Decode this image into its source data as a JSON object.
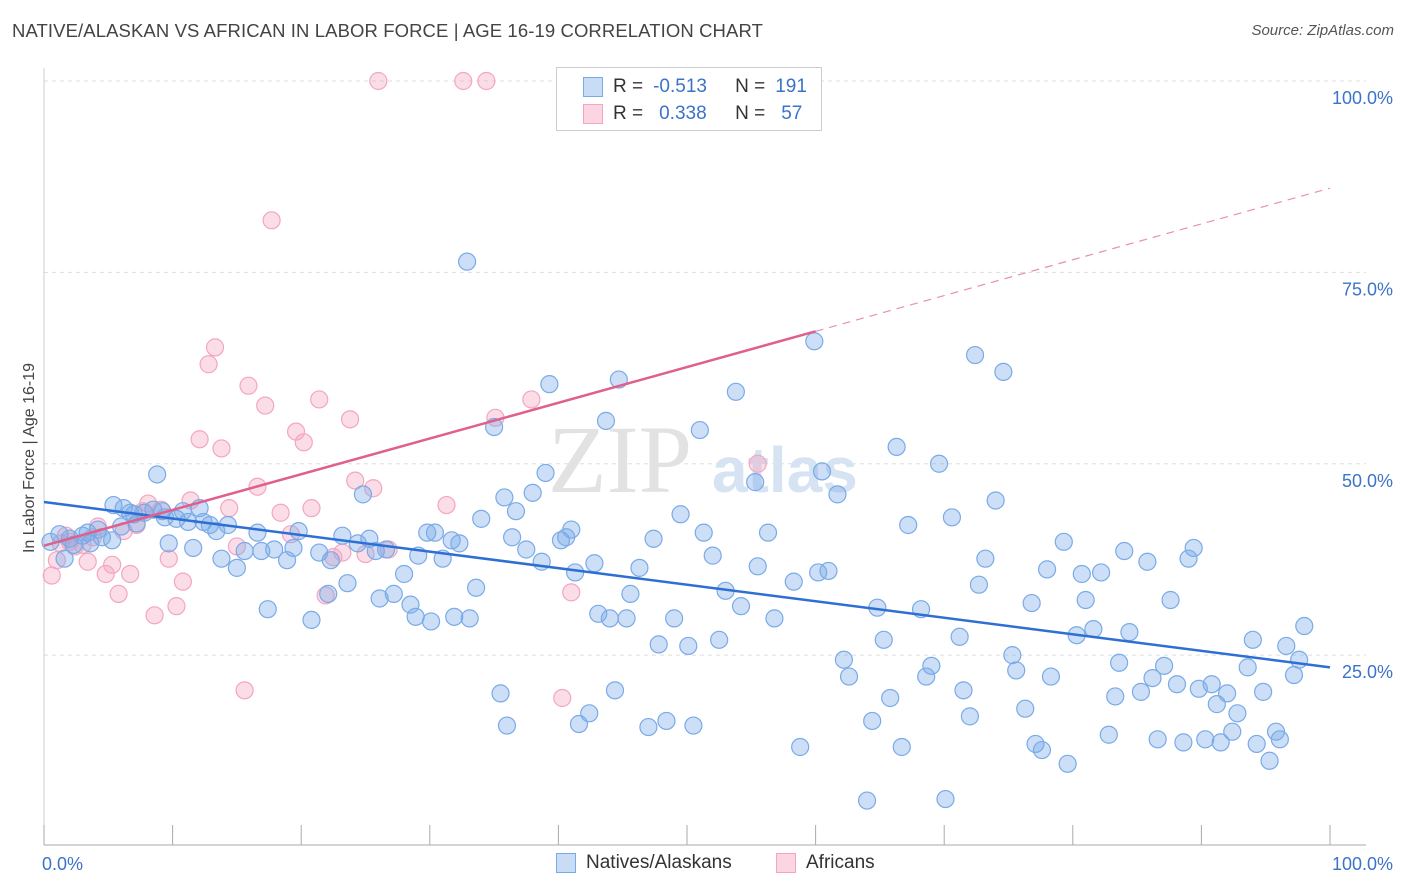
{
  "title": "NATIVE/ALASKAN VS AFRICAN IN LABOR FORCE | AGE 16-19 CORRELATION CHART",
  "source": "Source: ZipAtlas.com",
  "watermark": {
    "zip": "ZIP",
    "atlas": "atlas"
  },
  "legend": {
    "rows": [
      {
        "r_label": "R =",
        "r_value": "-0.513",
        "n_label": "N =",
        "n_value": "191"
      },
      {
        "r_label": "R =",
        "r_value": "0.338",
        "n_label": "N =",
        "n_value": "57"
      }
    ]
  },
  "chart_data": {
    "type": "scatter",
    "title": "NATIVE/ALASKAN VS AFRICAN IN LABOR FORCE | AGE 16-19 CORRELATION CHART",
    "ylabel": "In Labor Force | Age 16-19",
    "xlabel": "",
    "xlim": [
      0,
      100
    ],
    "ylim": [
      0,
      100
    ],
    "x_tick_labels": [
      "0.0%",
      "100.0%"
    ],
    "y_tick_labels": [
      "25.0%",
      "50.0%",
      "75.0%",
      "100.0%"
    ],
    "y_ticks": [
      25,
      50,
      75,
      100
    ],
    "grid": true,
    "legend_position": "top-center",
    "series": [
      {
        "name": "Natives/Alaskans",
        "color": "#7aaae8",
        "line_color": "#2e6fd3",
        "r": -0.513,
        "n": 191,
        "trend": {
          "x": [
            0,
            100
          ],
          "y": [
            45.0,
            23.4
          ]
        },
        "points": [
          [
            0.5,
            39.8
          ],
          [
            1.2,
            40.8
          ],
          [
            1.6,
            37.6
          ],
          [
            2.0,
            40.2
          ],
          [
            2.3,
            39.4
          ],
          [
            3.0,
            40.6
          ],
          [
            3.4,
            41.0
          ],
          [
            3.6,
            39.6
          ],
          [
            4.2,
            41.4
          ],
          [
            4.5,
            40.4
          ],
          [
            5.3,
            40.0
          ],
          [
            5.4,
            44.6
          ],
          [
            6.0,
            41.8
          ],
          [
            6.2,
            44.2
          ],
          [
            6.7,
            43.6
          ],
          [
            7.0,
            43.4
          ],
          [
            7.2,
            42.2
          ],
          [
            7.8,
            43.6
          ],
          [
            8.5,
            44.0
          ],
          [
            8.8,
            48.6
          ],
          [
            9.2,
            43.8
          ],
          [
            9.4,
            43.0
          ],
          [
            9.7,
            39.6
          ],
          [
            10.3,
            42.8
          ],
          [
            10.8,
            43.8
          ],
          [
            11.2,
            42.4
          ],
          [
            11.6,
            39.0
          ],
          [
            12.1,
            44.2
          ],
          [
            12.4,
            42.4
          ],
          [
            12.9,
            42.0
          ],
          [
            13.4,
            41.2
          ],
          [
            13.8,
            37.6
          ],
          [
            14.3,
            42.0
          ],
          [
            15.0,
            36.4
          ],
          [
            15.6,
            38.6
          ],
          [
            16.6,
            41.0
          ],
          [
            16.9,
            38.6
          ],
          [
            17.4,
            31.0
          ],
          [
            17.9,
            38.8
          ],
          [
            18.9,
            37.4
          ],
          [
            19.4,
            39.0
          ],
          [
            19.8,
            41.2
          ],
          [
            20.8,
            29.6
          ],
          [
            21.4,
            38.4
          ],
          [
            22.1,
            33.0
          ],
          [
            22.3,
            37.4
          ],
          [
            23.2,
            40.6
          ],
          [
            23.6,
            34.4
          ],
          [
            24.4,
            39.6
          ],
          [
            24.8,
            46.0
          ],
          [
            25.3,
            40.2
          ],
          [
            25.8,
            38.6
          ],
          [
            26.1,
            32.4
          ],
          [
            26.6,
            38.8
          ],
          [
            27.2,
            33.0
          ],
          [
            28.0,
            35.6
          ],
          [
            28.5,
            31.6
          ],
          [
            28.9,
            30.0
          ],
          [
            29.1,
            38.0
          ],
          [
            29.8,
            41.0
          ],
          [
            30.1,
            29.4
          ],
          [
            30.4,
            41.0
          ],
          [
            31.0,
            37.6
          ],
          [
            31.7,
            40.0
          ],
          [
            31.9,
            30.0
          ],
          [
            32.3,
            39.6
          ],
          [
            32.9,
            76.4
          ],
          [
            33.1,
            29.8
          ],
          [
            33.6,
            33.8
          ],
          [
            34.0,
            42.8
          ],
          [
            35.0,
            54.8
          ],
          [
            35.5,
            20.0
          ],
          [
            35.8,
            45.6
          ],
          [
            36.0,
            15.8
          ],
          [
            36.4,
            40.4
          ],
          [
            36.7,
            43.8
          ],
          [
            37.5,
            38.8
          ],
          [
            38.0,
            46.2
          ],
          [
            38.7,
            37.2
          ],
          [
            39.0,
            48.8
          ],
          [
            39.3,
            60.4
          ],
          [
            40.2,
            40.0
          ],
          [
            40.6,
            40.4
          ],
          [
            41.0,
            41.4
          ],
          [
            41.3,
            35.8
          ],
          [
            41.6,
            16.0
          ],
          [
            42.4,
            17.4
          ],
          [
            42.8,
            37.0
          ],
          [
            43.1,
            30.4
          ],
          [
            43.7,
            55.6
          ],
          [
            44.0,
            29.8
          ],
          [
            44.4,
            20.4
          ],
          [
            44.7,
            61.0
          ],
          [
            45.3,
            29.8
          ],
          [
            45.6,
            33.0
          ],
          [
            46.3,
            36.4
          ],
          [
            47.0,
            15.6
          ],
          [
            47.4,
            40.2
          ],
          [
            47.8,
            26.4
          ],
          [
            48.4,
            16.4
          ],
          [
            49.0,
            29.8
          ],
          [
            49.5,
            43.4
          ],
          [
            50.1,
            26.2
          ],
          [
            50.5,
            15.8
          ],
          [
            51.0,
            54.4
          ],
          [
            51.3,
            41.0
          ],
          [
            52.0,
            38.0
          ],
          [
            52.5,
            27.0
          ],
          [
            53.0,
            33.4
          ],
          [
            53.8,
            59.4
          ],
          [
            54.2,
            31.4
          ],
          [
            55.3,
            47.6
          ],
          [
            55.5,
            36.6
          ],
          [
            56.3,
            41.0
          ],
          [
            56.8,
            29.8
          ],
          [
            58.3,
            34.6
          ],
          [
            58.8,
            13.0
          ],
          [
            59.9,
            66.0
          ],
          [
            60.2,
            35.8
          ],
          [
            60.5,
            49.0
          ],
          [
            61.0,
            36.0
          ],
          [
            61.7,
            46.0
          ],
          [
            62.2,
            24.4
          ],
          [
            62.6,
            22.2
          ],
          [
            64.0,
            6.0
          ],
          [
            64.4,
            16.4
          ],
          [
            64.8,
            31.2
          ],
          [
            65.3,
            27.0
          ],
          [
            65.8,
            19.4
          ],
          [
            66.3,
            52.2
          ],
          [
            66.7,
            13.0
          ],
          [
            67.2,
            42.0
          ],
          [
            68.2,
            31.0
          ],
          [
            68.6,
            22.2
          ],
          [
            69.6,
            50.0
          ],
          [
            69.0,
            23.6
          ],
          [
            70.1,
            6.2
          ],
          [
            70.6,
            43.0
          ],
          [
            71.2,
            27.4
          ],
          [
            71.5,
            20.4
          ],
          [
            72.0,
            17.0
          ],
          [
            72.4,
            64.2
          ],
          [
            72.7,
            34.2
          ],
          [
            73.2,
            37.6
          ],
          [
            74.0,
            45.2
          ],
          [
            74.6,
            62.0
          ],
          [
            75.3,
            25.0
          ],
          [
            75.6,
            23.0
          ],
          [
            76.3,
            18.0
          ],
          [
            76.8,
            31.8
          ],
          [
            77.1,
            13.4
          ],
          [
            77.6,
            12.6
          ],
          [
            78.0,
            36.2
          ],
          [
            78.3,
            22.2
          ],
          [
            79.3,
            39.8
          ],
          [
            79.6,
            10.8
          ],
          [
            80.3,
            27.6
          ],
          [
            80.7,
            35.6
          ],
          [
            81.0,
            32.2
          ],
          [
            81.6,
            28.4
          ],
          [
            82.2,
            35.8
          ],
          [
            82.8,
            14.6
          ],
          [
            83.3,
            19.6
          ],
          [
            83.6,
            24.0
          ],
          [
            84.0,
            38.6
          ],
          [
            84.4,
            28.0
          ],
          [
            85.3,
            20.2
          ],
          [
            85.8,
            37.2
          ],
          [
            86.2,
            22.0
          ],
          [
            86.6,
            14.0
          ],
          [
            87.1,
            23.6
          ],
          [
            87.6,
            32.2
          ],
          [
            88.1,
            21.2
          ],
          [
            88.6,
            13.6
          ],
          [
            89.0,
            37.6
          ],
          [
            89.4,
            39.0
          ],
          [
            89.8,
            20.6
          ],
          [
            90.3,
            14.0
          ],
          [
            90.8,
            21.2
          ],
          [
            91.2,
            18.6
          ],
          [
            91.5,
            13.6
          ],
          [
            92.0,
            20.0
          ],
          [
            92.4,
            15.0
          ],
          [
            92.8,
            17.4
          ],
          [
            93.6,
            23.4
          ],
          [
            94.0,
            27.0
          ],
          [
            94.3,
            13.4
          ],
          [
            94.8,
            20.2
          ],
          [
            95.3,
            11.2
          ],
          [
            95.8,
            15.0
          ],
          [
            96.1,
            14.0
          ],
          [
            96.6,
            26.2
          ],
          [
            97.2,
            22.4
          ],
          [
            97.6,
            24.4
          ],
          [
            98.0,
            28.8
          ]
        ]
      },
      {
        "name": "Africans",
        "color": "#f4a6bf",
        "line_color": "#e05f8b",
        "r": 0.338,
        "n": 57,
        "trend": {
          "x": [
            0,
            60
          ],
          "y": [
            39.3,
            67.3
          ]
        },
        "trend_dashed": {
          "x": [
            60,
            100
          ],
          "y": [
            67.3,
            86.0
          ]
        },
        "points": [
          [
            0.6,
            35.4
          ],
          [
            1.0,
            37.4
          ],
          [
            1.3,
            39.6
          ],
          [
            1.7,
            40.6
          ],
          [
            2.0,
            39.8
          ],
          [
            2.4,
            39.2
          ],
          [
            3.0,
            39.4
          ],
          [
            3.4,
            37.2
          ],
          [
            3.8,
            40.4
          ],
          [
            4.2,
            41.8
          ],
          [
            4.8,
            35.6
          ],
          [
            5.3,
            36.8
          ],
          [
            5.8,
            33.0
          ],
          [
            6.2,
            41.2
          ],
          [
            6.7,
            35.6
          ],
          [
            7.2,
            42.0
          ],
          [
            7.7,
            43.8
          ],
          [
            8.1,
            44.8
          ],
          [
            8.6,
            30.2
          ],
          [
            9.1,
            44.0
          ],
          [
            9.7,
            37.6
          ],
          [
            10.3,
            31.4
          ],
          [
            10.8,
            34.6
          ],
          [
            11.4,
            45.2
          ],
          [
            12.1,
            53.2
          ],
          [
            12.8,
            63.0
          ],
          [
            13.3,
            65.2
          ],
          [
            13.8,
            52.0
          ],
          [
            14.4,
            44.2
          ],
          [
            15.0,
            39.2
          ],
          [
            15.6,
            20.4
          ],
          [
            15.9,
            60.2
          ],
          [
            16.6,
            47.0
          ],
          [
            17.2,
            57.6
          ],
          [
            17.7,
            81.8
          ],
          [
            18.4,
            43.6
          ],
          [
            19.2,
            40.8
          ],
          [
            19.6,
            54.2
          ],
          [
            20.2,
            52.8
          ],
          [
            20.8,
            44.2
          ],
          [
            21.4,
            58.4
          ],
          [
            21.9,
            32.8
          ],
          [
            22.5,
            37.8
          ],
          [
            23.2,
            38.4
          ],
          [
            23.8,
            55.8
          ],
          [
            24.2,
            47.8
          ],
          [
            25.0,
            38.2
          ],
          [
            25.6,
            46.8
          ],
          [
            26.0,
            100.0
          ],
          [
            26.8,
            38.8
          ],
          [
            31.3,
            44.6
          ],
          [
            32.6,
            100.0
          ],
          [
            34.4,
            100.0
          ],
          [
            35.1,
            56.0
          ],
          [
            37.9,
            58.4
          ],
          [
            40.3,
            19.4
          ],
          [
            41.0,
            33.2
          ],
          [
            55.5,
            50.0
          ]
        ]
      }
    ]
  },
  "bottom_legend": [
    {
      "label": "Natives/Alaskans",
      "fill": "#c9dcf6",
      "stroke": "#7aaae8"
    },
    {
      "label": "Africans",
      "fill": "#fbd5e1",
      "stroke": "#f4a6bf"
    }
  ]
}
